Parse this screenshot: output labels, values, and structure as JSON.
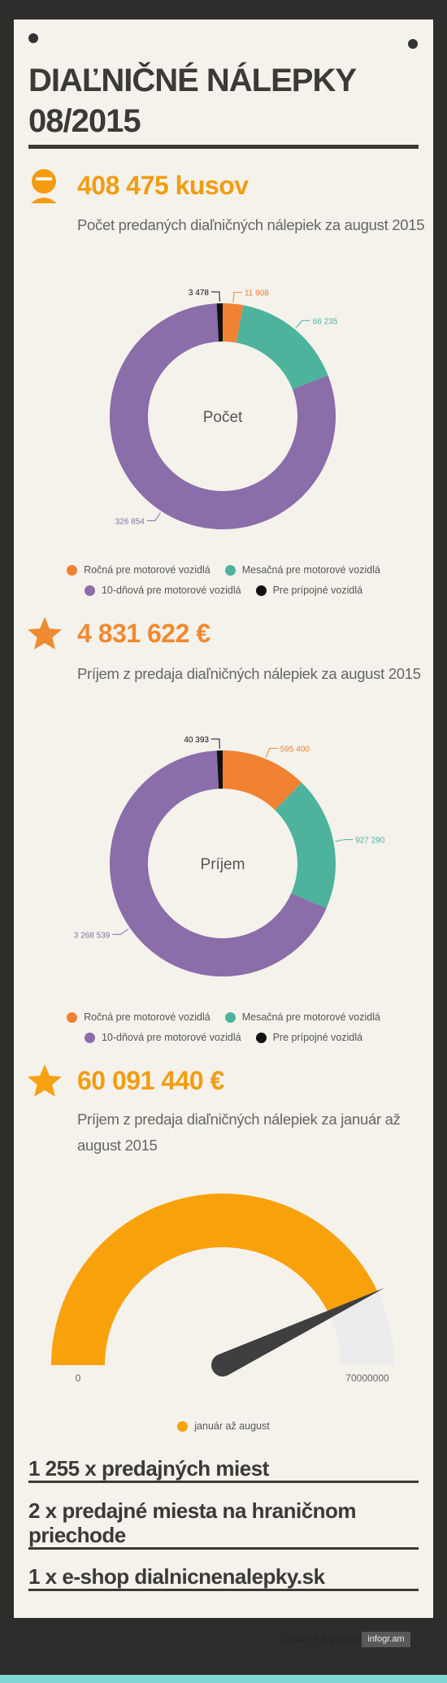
{
  "header": {
    "title": "DIAĽNIČNÉ NÁLEPKY 08/2015"
  },
  "stats": [
    {
      "value": "408 475 kusov",
      "text": "Počet predaných diaľničných nálepiek za august 2015"
    },
    {
      "value": "4 831 622 €",
      "text": "Príjem z predaja diaľničných nálepiek za august 2015"
    },
    {
      "value": "60 091 440 €",
      "text": "Príjem z predaja diaľničných nálepiek za január až august 2015"
    }
  ],
  "chart_data": [
    {
      "type": "donut",
      "center_label": "Počet",
      "categories": [
        "Ročná pre motorové vozidlá",
        "Mesačná pre motorové vozidlá",
        "10-dňová pre motorové vozidlá",
        "Pre prípojné vozidlá"
      ],
      "values": [
        11908,
        66235,
        326854,
        3478
      ],
      "value_labels": [
        "11 908",
        "66 235",
        "326 854",
        "3 478"
      ],
      "colors": [
        "#f08231",
        "#4db39d",
        "#8a6da9",
        "#111111"
      ]
    },
    {
      "type": "donut",
      "center_label": "Príjem",
      "categories": [
        "Ročná pre motorové vozidlá",
        "Mesačná pre motorové vozidlá",
        "10-dňová pre motorové vozidlá",
        "Pre prípojné vozidlá"
      ],
      "values": [
        595400,
        927290,
        3268539,
        40393
      ],
      "value_labels": [
        "595 400",
        "927 290",
        "3 268 539",
        "40 393"
      ],
      "colors": [
        "#f08231",
        "#4db39d",
        "#8a6da9",
        "#111111"
      ]
    },
    {
      "type": "gauge",
      "ylim": [
        0,
        70000000
      ],
      "yticks": [
        0,
        70000000
      ],
      "series": [
        {
          "name": "január až august",
          "color": "#f9a10a",
          "values": [
            60091440
          ]
        }
      ]
    }
  ],
  "facts": [
    "1 255 x predajných miest",
    "2 x predajné miesta na hraničnom priechode",
    "1 x e-shop dialnicnenalepky.sk"
  ],
  "footer": {
    "text": "Create infographics",
    "brand": "infogr.am"
  }
}
